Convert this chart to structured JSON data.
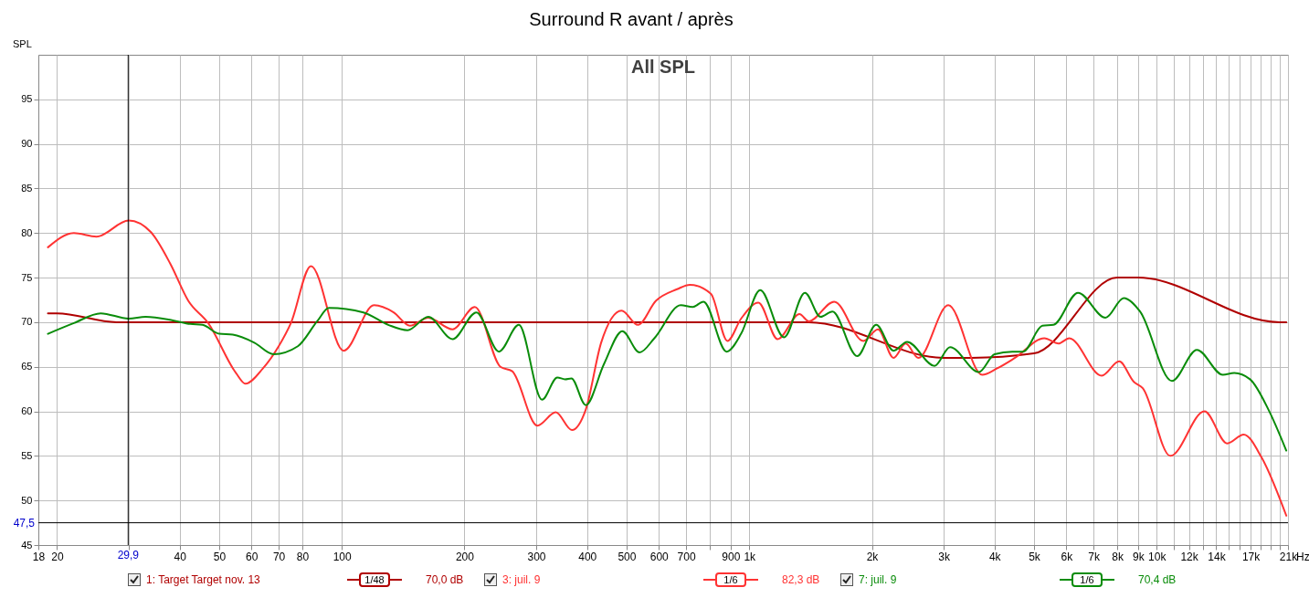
{
  "chart_data": {
    "type": "line",
    "title": "Surround R avant / après",
    "ylabel": "SPL",
    "annotations": [
      "All SPL",
      "1/48",
      "70,0 dB",
      "1/6",
      "82,3 dB",
      "1/6",
      "70,4 dB"
    ],
    "xlim": [
      18,
      21000
    ],
    "ylim": [
      45,
      100
    ],
    "xticks": [
      18,
      20,
      {
        "value": 30,
        "label": null
      },
      40,
      50,
      60,
      70,
      80,
      100,
      200,
      300,
      400,
      500,
      600,
      700,
      {
        "value": 800,
        "label": null
      },
      900,
      {
        "value": 1000,
        "label": "1k"
      },
      {
        "value": 2000,
        "label": "2k"
      },
      {
        "value": 3000,
        "label": "3k"
      },
      {
        "value": 4000,
        "label": "4k"
      },
      {
        "value": 5000,
        "label": "5k"
      },
      {
        "value": 6000,
        "label": "6k"
      },
      {
        "value": 7000,
        "label": "7k"
      },
      {
        "value": 8000,
        "label": "8k"
      },
      {
        "value": 9000,
        "label": "9k"
      },
      {
        "value": 10000,
        "label": "10k"
      },
      {
        "value": 11000,
        "label": null
      },
      {
        "value": 12000,
        "label": "12k"
      },
      {
        "value": 13000,
        "label": null
      },
      {
        "value": 14000,
        "label": "14k"
      },
      {
        "value": 15000,
        "label": null
      },
      {
        "value": 16000,
        "label": null
      },
      {
        "value": 17000,
        "label": "17k"
      },
      {
        "value": 18000,
        "label": null
      },
      {
        "value": 19000,
        "label": null
      },
      {
        "value": 20000,
        "label": null
      },
      {
        "value": 21000,
        "label": "21k"
      }
    ],
    "xlabel": "Hz",
    "log": "x",
    "yticks": [
      45,
      50,
      55,
      60,
      65,
      70,
      75,
      80,
      85,
      90,
      95
    ],
    "grid": true,
    "legend": "bottom",
    "ref_lines": [
      {
        "axis": "x",
        "value": 29.9,
        "label": "29,9",
        "color": "#000000"
      },
      {
        "axis": "y",
        "value": 47.5,
        "label": "47,5",
        "color": "#000000"
      }
    ],
    "series": [
      {
        "name": "1: Target Target nov. 13",
        "color": "#b00000",
        "x": [
          19,
          20,
          28,
          1400,
          3000,
          3500,
          5000,
          8000,
          9000,
          20000,
          20800
        ],
        "values": [
          71,
          71,
          70,
          70,
          66,
          66,
          66.5,
          75,
          75,
          70,
          70
        ]
      },
      {
        "name": "3: juil. 9",
        "color": "#ff3333",
        "x": [
          19,
          22,
          25,
          30,
          34,
          38,
          42,
          47,
          55,
          58,
          64,
          70,
          75,
          84,
          101,
          120,
          134,
          147,
          163,
          187,
          212,
          245,
          262,
          302,
          335,
          367,
          397,
          433,
          486,
          533,
          590,
          665,
          715,
          805,
          884,
          955,
          1053,
          1174,
          1328,
          1400,
          1616,
          1906,
          2070,
          2260,
          2420,
          2600,
          3080,
          3730,
          4050,
          4490,
          5300,
          5740,
          6100,
          7330,
          8090,
          8790,
          9240,
          10800,
          13100,
          14900,
          16350,
          18100,
          20800
        ],
        "values": [
          78.4,
          80,
          79.6,
          81.4,
          80.1,
          76.5,
          72.4,
          69.9,
          64.3,
          63.1,
          64.8,
          67.3,
          69.9,
          76.3,
          66.8,
          71.9,
          71.1,
          69.6,
          70.5,
          69.2,
          71.7,
          65,
          64.5,
          58.4,
          59.9,
          57.9,
          60.2,
          67.7,
          71.3,
          69.7,
          72.4,
          73.7,
          74.2,
          73.2,
          67.9,
          70.4,
          72.2,
          68.1,
          70.9,
          70.1,
          72.3,
          67.9,
          69.2,
          66,
          67.6,
          66,
          71.9,
          64.1,
          64.8,
          66,
          68.2,
          67.6,
          68.2,
          64,
          65.6,
          63.3,
          62.6,
          55,
          60,
          56.4,
          57.4,
          54.8,
          48.3
        ]
      },
      {
        "name": "7: juil. 9",
        "color": "#0a8c0a",
        "x": [
          19,
          22,
          25.6,
          30,
          33,
          38.5,
          42.5,
          45.5,
          50,
          54,
          61,
          68,
          78,
          87,
          93,
          113,
          130,
          145,
          163,
          187,
          214,
          243,
          272,
          310,
          338,
          353,
          366,
          397,
          440,
          488,
          538,
          585,
          679,
          726,
          772,
          880,
          955,
          1064,
          1217,
          1370,
          1496,
          1600,
          1840,
          2050,
          2260,
          2440,
          2850,
          3110,
          3660,
          4000,
          4420,
          4700,
          5240,
          5580,
          6410,
          7490,
          8300,
          9100,
          10900,
          12550,
          14530,
          15500,
          16940,
          18800,
          20800
        ],
        "values": [
          68.7,
          69.9,
          71,
          70.4,
          70.6,
          70.2,
          69.8,
          69.7,
          68.7,
          68.6,
          67.7,
          66.4,
          67.3,
          70.1,
          71.6,
          71.1,
          69.7,
          69.1,
          70.6,
          68.1,
          71.1,
          66.7,
          69.7,
          61.3,
          63.8,
          63.6,
          63.7,
          60.7,
          65.3,
          69,
          66.6,
          68.2,
          71.9,
          71.7,
          72.3,
          66.7,
          68.7,
          73.6,
          68.3,
          73.3,
          70.6,
          71.2,
          66.2,
          69.7,
          66.8,
          67.8,
          65.1,
          67.2,
          64.4,
          66.4,
          66.7,
          66.7,
          69.6,
          69.7,
          73.3,
          70.5,
          72.7,
          71.2,
          63.4,
          66.9,
          64.1,
          64.3,
          63.6,
          60.2,
          55.6
        ]
      }
    ]
  }
}
